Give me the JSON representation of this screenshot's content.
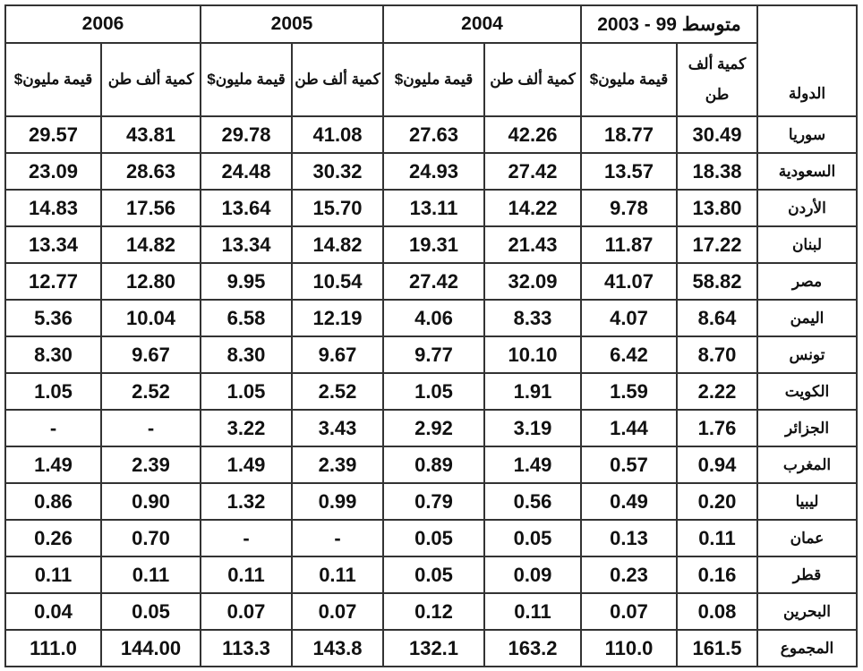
{
  "header": {
    "country_label": "الدولة",
    "periods": [
      "متوسط 99 - 2003",
      "2004",
      "2005",
      "2006"
    ],
    "avg_qty_label": "كمية ألف طن",
    "qty_label": "كمية ألف طن",
    "value_label": "قيمة مليون$"
  },
  "rows": [
    [
      "سوريا",
      "30.49",
      "18.77",
      "42.26",
      "27.63",
      "41.08",
      "29.78",
      "43.81",
      "29.57"
    ],
    [
      "السعودية",
      "18.38",
      "13.57",
      "27.42",
      "24.93",
      "30.32",
      "24.48",
      "28.63",
      "23.09"
    ],
    [
      "الأردن",
      "13.80",
      "9.78",
      "14.22",
      "13.11",
      "15.70",
      "13.64",
      "17.56",
      "14.83"
    ],
    [
      "لبنان",
      "17.22",
      "11.87",
      "21.43",
      "19.31",
      "14.82",
      "13.34",
      "14.82",
      "13.34"
    ],
    [
      "مصر",
      "58.82",
      "41.07",
      "32.09",
      "27.42",
      "10.54",
      "9.95",
      "12.80",
      "12.77"
    ],
    [
      "اليمن",
      "8.64",
      "4.07",
      "8.33",
      "4.06",
      "12.19",
      "6.58",
      "10.04",
      "5.36"
    ],
    [
      "تونس",
      "8.70",
      "6.42",
      "10.10",
      "9.77",
      "9.67",
      "8.30",
      "9.67",
      "8.30"
    ],
    [
      "الكويت",
      "2.22",
      "1.59",
      "1.91",
      "1.05",
      "2.52",
      "1.05",
      "2.52",
      "1.05"
    ],
    [
      "الجزائر",
      "1.76",
      "1.44",
      "3.19",
      "2.92",
      "3.43",
      "3.22",
      "-",
      "-"
    ],
    [
      "المغرب",
      "0.94",
      "0.57",
      "1.49",
      "0.89",
      "2.39",
      "1.49",
      "2.39",
      "1.49"
    ],
    [
      "ليبيا",
      "0.20",
      "0.49",
      "0.56",
      "0.79",
      "0.99",
      "1.32",
      "0.90",
      "0.86"
    ],
    [
      "عمان",
      "0.11",
      "0.13",
      "0.05",
      "0.05",
      "-",
      "-",
      "0.70",
      "0.26"
    ],
    [
      "قطر",
      "0.16",
      "0.23",
      "0.09",
      "0.05",
      "0.11",
      "0.11",
      "0.11",
      "0.11"
    ],
    [
      "البحرين",
      "0.08",
      "0.07",
      "0.11",
      "0.12",
      "0.07",
      "0.07",
      "0.05",
      "0.04"
    ],
    [
      "المجموع",
      "161.5",
      "110.0",
      "163.2",
      "132.1",
      "143.8",
      "113.3",
      "144.00",
      "111.0"
    ]
  ]
}
